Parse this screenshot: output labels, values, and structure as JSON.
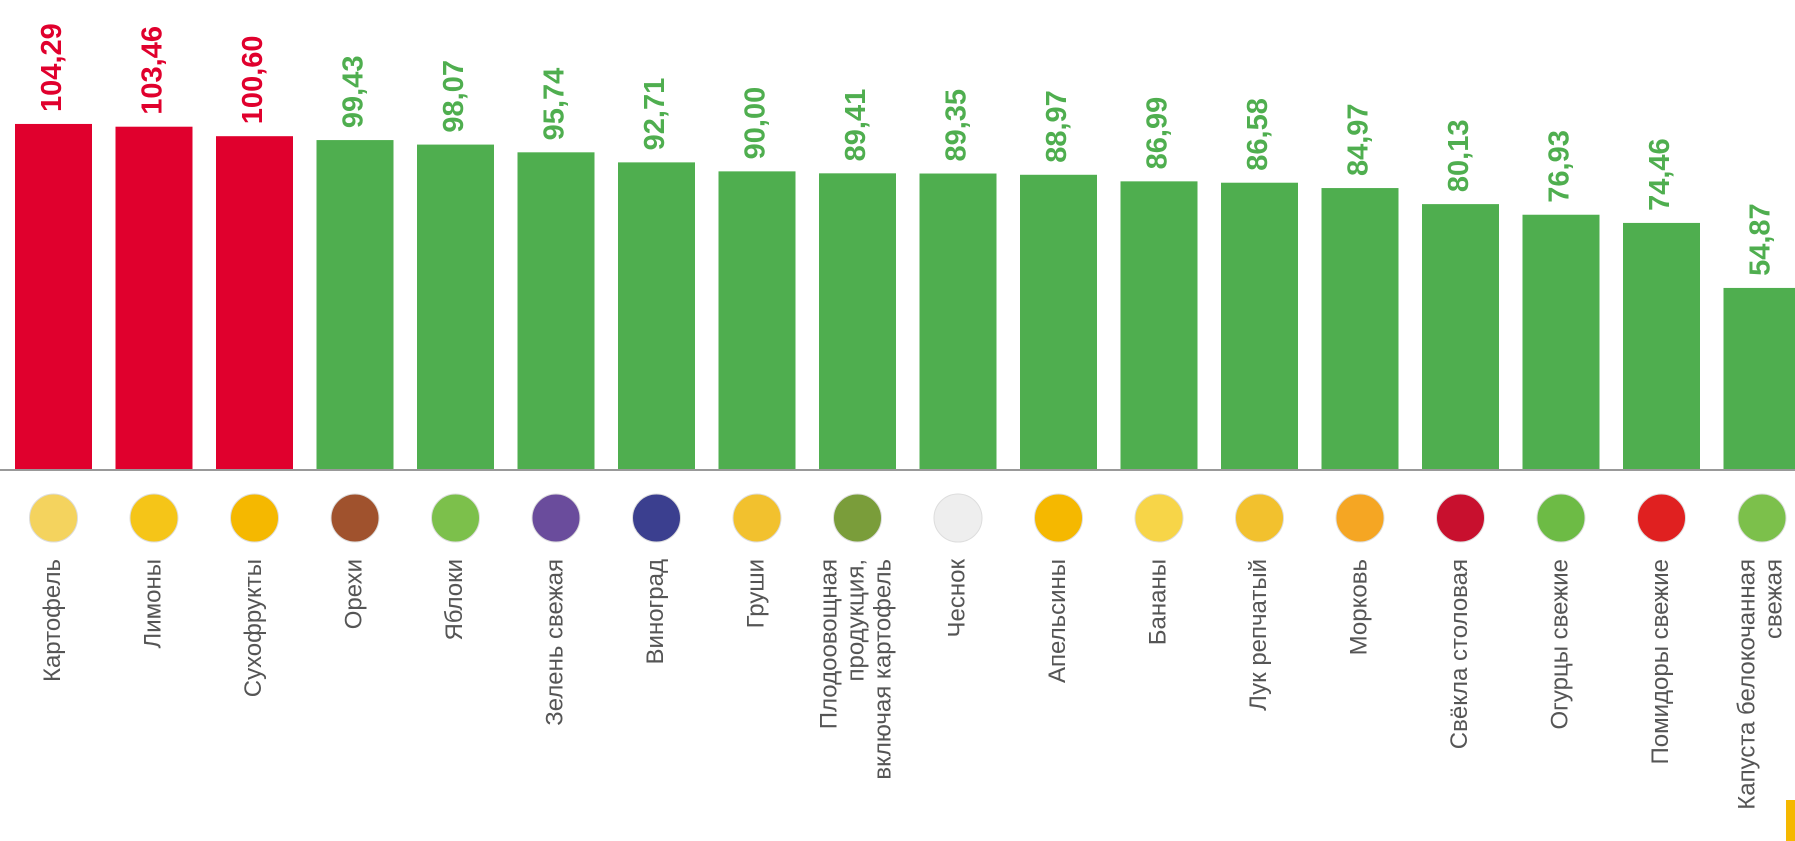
{
  "chart_data": {
    "type": "bar",
    "categories": [
      "Картофель",
      "Лимоны",
      "Сухофрукты",
      "Орехи",
      "Яблоки",
      "Зелень свежая",
      "Виноград",
      "Груши",
      "Плодоовощная\nпродукция,\nвключая картофель",
      "Чеснок",
      "Апельсины",
      "Бананы",
      "Лук репчатый",
      "Морковь",
      "Свёкла столовая",
      "Огурцы свежие",
      "Помидоры свежие",
      "Капуста белокочанная\nсвежая"
    ],
    "values": [
      104.29,
      103.46,
      100.6,
      99.43,
      98.07,
      95.74,
      92.71,
      90.0,
      89.41,
      89.35,
      88.97,
      86.99,
      86.58,
      84.97,
      80.13,
      76.93,
      74.46,
      54.87
    ],
    "value_labels": [
      "104,29",
      "103,46",
      "100,60",
      "99,43",
      "98,07",
      "95,74",
      "92,71",
      "90,00",
      "89,41",
      "89,35",
      "88,97",
      "86,99",
      "86,58",
      "84,97",
      "80,13",
      "76,93",
      "74,46",
      "54,87"
    ],
    "colors": [
      "#e0002d",
      "#e0002d",
      "#e0002d",
      "#4fae4f",
      "#4fae4f",
      "#4fae4f",
      "#4fae4f",
      "#4fae4f",
      "#4fae4f",
      "#4fae4f",
      "#4fae4f",
      "#4fae4f",
      "#4fae4f",
      "#4fae4f",
      "#4fae4f",
      "#4fae4f",
      "#4fae4f",
      "#4fae4f"
    ],
    "ylim": [
      0,
      110
    ]
  }
}
